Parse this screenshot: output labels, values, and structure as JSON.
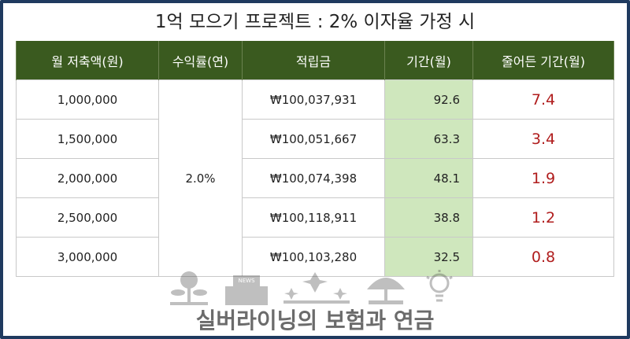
{
  "title": "1억 모으기 프로젝트 : 2% 이자율 가정 시",
  "headers": [
    "월 저축액(원)",
    "수익률(연)",
    "적립금",
    "기간(월)",
    "줄어든 기간(월)"
  ],
  "rate": "2.0%",
  "rows": [
    {
      "monthly": "1,000,000",
      "accumulated": "₩100,037,931",
      "period": "92.6",
      "reduced": "7.4"
    },
    {
      "monthly": "1,500,000",
      "accumulated": "₩100,051,667",
      "period": "63.3",
      "reduced": "3.4"
    },
    {
      "monthly": "2,000,000",
      "accumulated": "₩100,074,398",
      "period": "48.1",
      "reduced": "1.9"
    },
    {
      "monthly": "2,500,000",
      "accumulated": "₩100,118,911",
      "period": "38.8",
      "reduced": "1.2"
    },
    {
      "monthly": "3,000,000",
      "accumulated": "₩100,103,280",
      "period": "32.5",
      "reduced": "0.8"
    }
  ],
  "watermark": {
    "news_label": "NEWS",
    "text": "실버라이닝의 보험과 연금"
  },
  "colors": {
    "header_bg": "#3a5a1f",
    "period_bg": "#cfe7bd",
    "reduced_text": "#b01d1d",
    "frame": "#1f3a5f"
  },
  "icons": [
    "money-plant-icon",
    "news-envelope-icon",
    "sparkle-icon",
    "umbrella-icon",
    "lightbulb-icon"
  ]
}
